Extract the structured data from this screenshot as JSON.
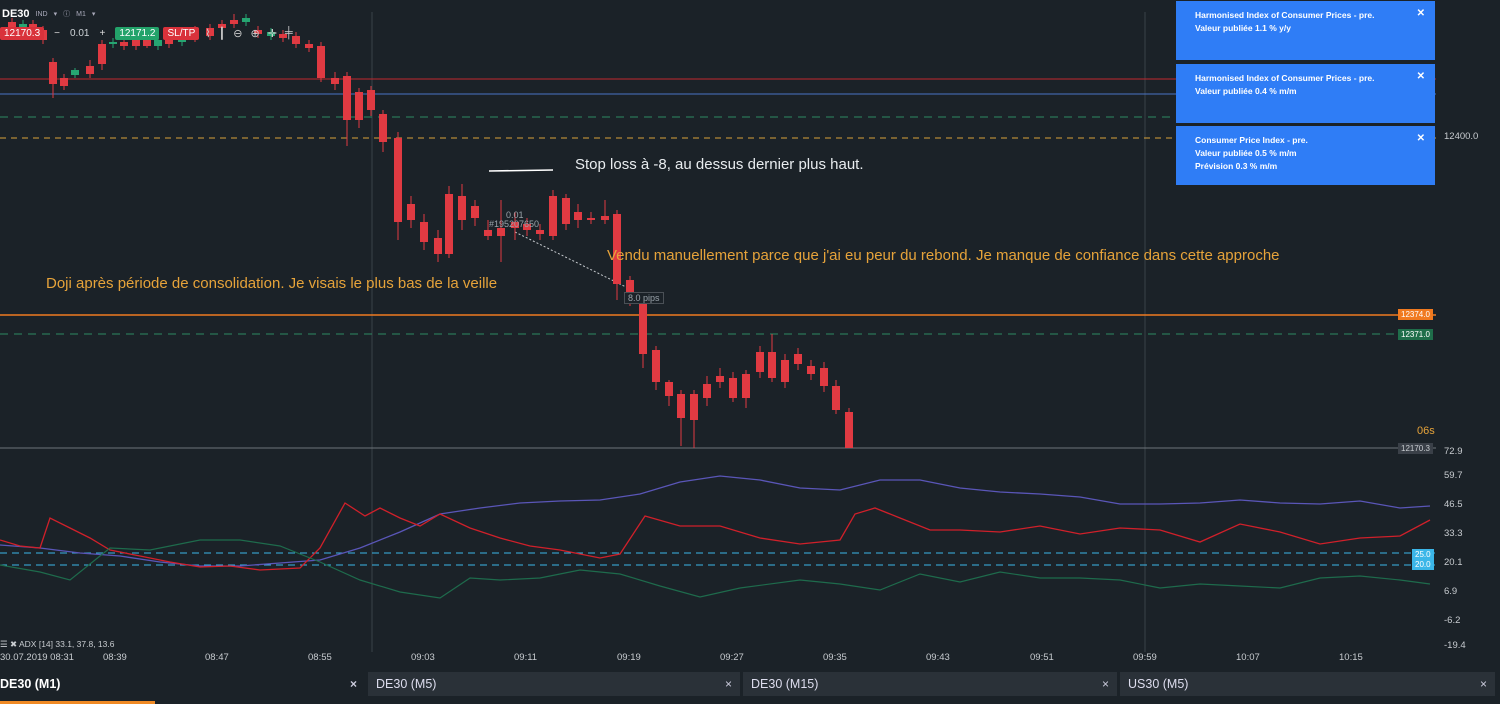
{
  "header": {
    "symbol": "DE30",
    "market": "IND",
    "info_icon": "info-icon",
    "timeframe": "M1"
  },
  "trade_bar": {
    "sell_price": "12170.3",
    "lot_minus": "−",
    "lot": "0.01",
    "lot_plus": "+",
    "buy_price": "12171.2",
    "sltp_label": "SL/TP"
  },
  "notifications": [
    {
      "title": "Harmonised Index of Consumer Prices - pre.",
      "line2_prefix": "Valeur publiée",
      "line2_value": "1.1",
      "line2_suffix": "% y/y",
      "line3": ""
    },
    {
      "title": "Harmonised Index of Consumer Prices - pre.",
      "line2_prefix": "Valeur publiée",
      "line2_value": "0.4",
      "line2_suffix": "% m/m",
      "line3": ""
    },
    {
      "title": "Consumer Price Index - pre.",
      "line2_prefix": "Valeur publiée",
      "line2_value": "0.5",
      "line2_suffix": "% m/m",
      "line3": "Prévision 0.3 % m/m"
    }
  ],
  "annotations": {
    "stop_loss": "Stop loss à -8, au dessus dernier plus haut.",
    "sold_manually": "Vendu manuellement parce que j'ai eu peur du rebond. Je manque de confiance dans cette approche",
    "doji": "Doji après période de consolidation. Je visais le plus bas de la veille",
    "position_lot": "0.01",
    "position_id": "#195207650",
    "pips": "8.0 pips",
    "countdown": "06s"
  },
  "price_axis": {
    "label_12400": "12400.0",
    "badge_orange": "12374.0",
    "badge_green": "12371.0",
    "current": "12170.3"
  },
  "colors": {
    "background": "#1b2228",
    "bull": "#26a672",
    "bear": "#e03a42",
    "notification": "#2f7df6",
    "annotation": "#e6a33a",
    "orange_line": "#f07a20",
    "red_line": "#c0282e",
    "blue_line": "#4a74c6"
  },
  "adx": {
    "label": "ADX [14] 33.1, 37.8, 13.6",
    "axis_ticks": [
      "72.9",
      "59.7",
      "46.5",
      "33.3",
      "20.1",
      "6.9",
      "-6.2",
      "-19.4"
    ],
    "badge_25": "25.0",
    "badge_20": "20.0"
  },
  "time_axis": [
    "30.07.2019 08:31",
    "08:39",
    "08:47",
    "08:55",
    "09:03",
    "09:11",
    "09:19",
    "09:27",
    "09:35",
    "09:43",
    "09:51",
    "09:59",
    "10:07",
    "10:15"
  ],
  "tabs": [
    {
      "label": "DE30 (M1)",
      "active": true
    },
    {
      "label": "DE30 (M5)",
      "active": false
    },
    {
      "label": "DE30 (M15)",
      "active": false
    },
    {
      "label": "US30 (M5)",
      "active": false
    }
  ]
}
